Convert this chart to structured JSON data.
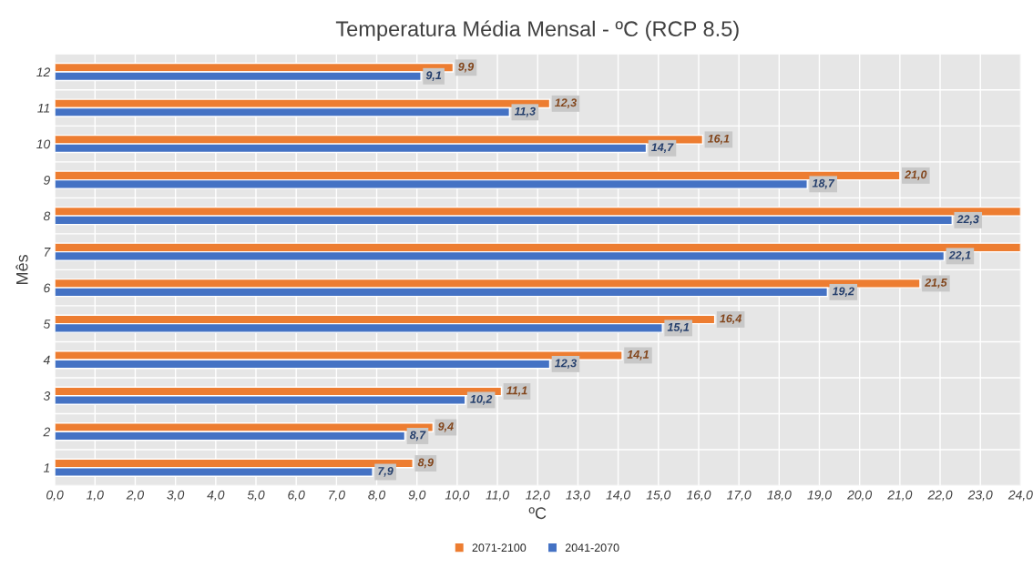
{
  "chart_data": {
    "type": "bar",
    "orientation": "horizontal",
    "title": "Temperatura Média Mensal - ºC (RCP 8.5)",
    "xlabel": "ºC",
    "ylabel": "Mês",
    "categories": [
      "12",
      "11",
      "10",
      "9",
      "8",
      "7",
      "6",
      "5",
      "4",
      "3",
      "2",
      "1"
    ],
    "series": [
      {
        "name": "2071-2100",
        "color": "#ed7d31",
        "values": [
          9.9,
          12.3,
          16.1,
          21.0,
          24,
          24,
          21.5,
          16.4,
          14.1,
          11.1,
          9.4,
          8.9
        ],
        "value_labels": [
          "9,9",
          "12,3",
          "16,1",
          "21,0",
          null,
          null,
          "21,5",
          "16,4",
          "14,1",
          "11,1",
          "9,4",
          "8,9"
        ]
      },
      {
        "name": "2041-2070",
        "color": "#4472c4",
        "values": [
          9.1,
          11.3,
          14.7,
          18.7,
          22.3,
          22.1,
          19.2,
          15.1,
          12.3,
          10.2,
          8.7,
          7.9
        ],
        "value_labels": [
          "9,1",
          "11,3",
          "14,7",
          "18,7",
          "22,3",
          "22,1",
          "19,2",
          "15,1",
          "12,3",
          "10,2",
          "8,7",
          "7,9"
        ]
      }
    ],
    "xlim": [
      0,
      24
    ],
    "xticks": [
      {
        "value": 0,
        "label": "0,0"
      },
      {
        "value": 1,
        "label": "1,0"
      },
      {
        "value": 2,
        "label": "2,0"
      },
      {
        "value": 3,
        "label": "3,0"
      },
      {
        "value": 4,
        "label": "4,0"
      },
      {
        "value": 5,
        "label": "5,0"
      },
      {
        "value": 6,
        "label": "6,0"
      },
      {
        "value": 7,
        "label": "7,0"
      },
      {
        "value": 8,
        "label": "8,0"
      },
      {
        "value": 9,
        "label": "9,0"
      },
      {
        "value": 10,
        "label": "10,0"
      },
      {
        "value": 11,
        "label": "11,0"
      },
      {
        "value": 12,
        "label": "12,0"
      },
      {
        "value": 13,
        "label": "13,0"
      },
      {
        "value": 14,
        "label": "14,0"
      },
      {
        "value": 15,
        "label": "15,0"
      },
      {
        "value": 16,
        "label": "16,0"
      },
      {
        "value": 17,
        "label": "17,0"
      },
      {
        "value": 18,
        "label": "18,0"
      },
      {
        "value": 19,
        "label": "19,0"
      },
      {
        "value": 20,
        "label": "20,0"
      },
      {
        "value": 21,
        "label": "21,0"
      },
      {
        "value": 22,
        "label": "22,0"
      },
      {
        "value": 23,
        "label": "23,0"
      },
      {
        "value": 24,
        "label": "24,0"
      }
    ],
    "grid": true,
    "legend": "bottom"
  }
}
